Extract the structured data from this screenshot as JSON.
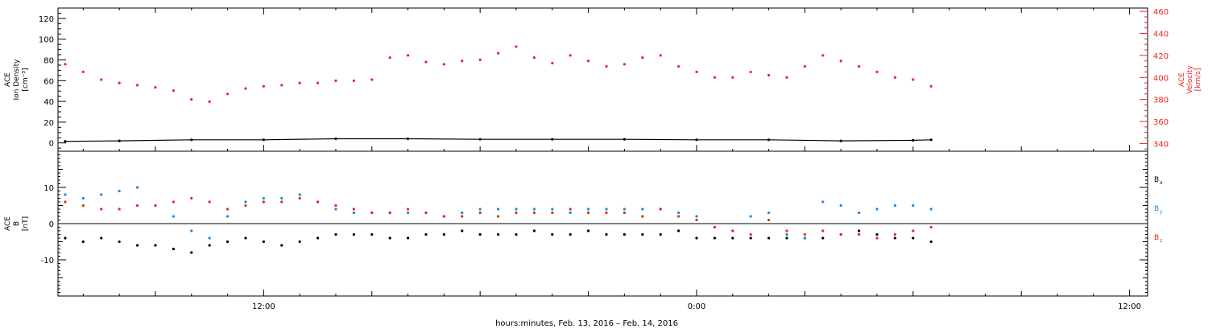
{
  "xlabel": "hours:minutes, Feb. 13, 2016 – Feb. 14, 2016",
  "colors": {
    "axis": "#000000",
    "density": "#000000",
    "velocity": "#ee2222",
    "bx": "#000000",
    "by": "#1f86dd",
    "bz": "#ee2222"
  },
  "chart_data": [
    {
      "type": "scatter",
      "x_axis": {
        "unit": "hours since Feb 13 00:00",
        "range": [
          6.3,
          36.5
        ],
        "tick_labels": [
          {
            "at": 12,
            "label": "12:00"
          },
          {
            "at": 24,
            "label": "0:00"
          },
          {
            "at": 36,
            "label": "12:00"
          }
        ]
      },
      "left_axis": {
        "label_lines": [
          "ACE",
          "Ion Density",
          "[cm⁻³]"
        ],
        "range": [
          -8,
          130
        ],
        "ticks": [
          0,
          20,
          40,
          60,
          80,
          100,
          120
        ]
      },
      "right_axis": {
        "label_lines": [
          "ACE",
          "Velocity",
          "[km/s]"
        ],
        "range": [
          333,
          463
        ],
        "ticks": [
          340,
          360,
          380,
          400,
          420,
          440,
          460
        ]
      },
      "series": [
        {
          "axis": "left",
          "color_key": "density",
          "x": [
            6.5,
            8,
            10,
            12,
            14,
            16,
            18,
            20,
            22,
            24,
            26,
            28,
            30,
            30.5
          ],
          "y": [
            1.5,
            2,
            3,
            3,
            4,
            4,
            3.5,
            3.5,
            3.5,
            3,
            3,
            2,
            2.5,
            3
          ]
        },
        {
          "axis": "right",
          "color_key": "velocity",
          "x": [
            6.5,
            7.0,
            7.5,
            8.0,
            8.5,
            9.0,
            9.5,
            10.0,
            10.5,
            11.0,
            11.5,
            12.0,
            12.5,
            13.0,
            13.5,
            14.0,
            14.5,
            15.0,
            15.5,
            16.0,
            16.5,
            17.0,
            17.5,
            18.0,
            18.5,
            19.0,
            19.5,
            20.0,
            20.5,
            21.0,
            21.5,
            22.0,
            22.5,
            23.0,
            23.5,
            24.0,
            24.5,
            25.0,
            25.5,
            26.0,
            26.5,
            27.0,
            27.5,
            28.0,
            28.5,
            29.0,
            29.5,
            30.0,
            30.5
          ],
          "y": [
            412,
            405,
            398,
            395,
            393,
            391,
            388,
            380,
            378,
            385,
            390,
            392,
            393,
            395,
            395,
            397,
            397,
            398,
            418,
            420,
            414,
            412,
            415,
            416,
            422,
            428,
            418,
            413,
            420,
            415,
            410,
            412,
            418,
            420,
            410,
            405,
            400,
            400,
            405,
            402,
            400,
            410,
            420,
            415,
            410,
            405,
            400,
            398,
            392
          ]
        }
      ]
    },
    {
      "type": "scatter",
      "x_axis": {
        "unit": "hours since Feb 13 00:00",
        "range": [
          6.3,
          36.5
        ]
      },
      "left_axis": {
        "label_lines": [
          "ACE",
          "B",
          "[nT]"
        ],
        "range": [
          -20,
          20
        ],
        "ticks": [
          -10,
          0,
          10
        ]
      },
      "zero_line": true,
      "legend": {
        "position": "right",
        "entries": [
          {
            "label": "B",
            "sub": "x",
            "color_key": "bx"
          },
          {
            "label": "B",
            "sub": "y",
            "color_key": "by"
          },
          {
            "label": "B",
            "sub": "z",
            "color_key": "bz"
          }
        ]
      },
      "series": [
        {
          "color_key": "bx",
          "x": [
            6.5,
            7.0,
            7.5,
            8.0,
            8.5,
            9.0,
            9.5,
            10.0,
            10.5,
            11.0,
            11.5,
            12.0,
            12.5,
            13.0,
            13.5,
            14.0,
            14.5,
            15.0,
            15.5,
            16.0,
            16.5,
            17.0,
            17.5,
            18.0,
            18.5,
            19.0,
            19.5,
            20.0,
            20.5,
            21.0,
            21.5,
            22.0,
            22.5,
            23.0,
            23.5,
            24.0,
            24.5,
            25.0,
            25.5,
            26.0,
            26.5,
            27.0,
            27.5,
            28.0,
            28.5,
            29.0,
            29.5,
            30.0,
            30.5
          ],
          "y": [
            -4,
            -5,
            -4,
            -5,
            -6,
            -6,
            -7,
            -8,
            -6,
            -5,
            -4,
            -5,
            -6,
            -5,
            -4,
            -3,
            -3,
            -3,
            -4,
            -4,
            -3,
            -3,
            -2,
            -3,
            -3,
            -3,
            -2,
            -3,
            -3,
            -2,
            -3,
            -3,
            -3,
            -3,
            -2,
            -4,
            -4,
            -4,
            -4,
            -4,
            -4,
            -4,
            -4,
            -3,
            -2,
            -3,
            -4,
            -4,
            -5
          ]
        },
        {
          "color_key": "by",
          "x": [
            6.5,
            7.0,
            7.5,
            8.0,
            8.5,
            9.0,
            9.5,
            10.0,
            10.5,
            11.0,
            11.5,
            12.0,
            12.5,
            13.0,
            13.5,
            14.0,
            14.5,
            15.0,
            15.5,
            16.0,
            16.5,
            17.0,
            17.5,
            18.0,
            18.5,
            19.0,
            19.5,
            20.0,
            20.5,
            21.0,
            21.5,
            22.0,
            22.5,
            23.0,
            23.5,
            24.0,
            24.5,
            25.0,
            25.5,
            26.0,
            26.5,
            27.0,
            27.5,
            28.0,
            28.5,
            29.0,
            29.5,
            30.0,
            30.5
          ],
          "y": [
            8,
            7,
            8,
            9,
            10,
            5,
            2,
            -2,
            -4,
            2,
            6,
            7,
            7,
            8,
            6,
            4,
            3,
            3,
            3,
            3,
            3,
            2,
            3,
            4,
            4,
            4,
            4,
            4,
            3,
            4,
            4,
            4,
            4,
            4,
            3,
            2,
            -1,
            -2,
            2,
            3,
            -3,
            -4,
            6,
            5,
            3,
            4,
            5,
            5,
            4
          ]
        },
        {
          "color_key": "bz",
          "x": [
            6.5,
            7.0,
            7.5,
            8.0,
            8.5,
            9.0,
            9.5,
            10.0,
            10.5,
            11.0,
            11.5,
            12.0,
            12.5,
            13.0,
            13.5,
            14.0,
            14.5,
            15.0,
            15.5,
            16.0,
            16.5,
            17.0,
            17.5,
            18.0,
            18.5,
            19.0,
            19.5,
            20.0,
            20.5,
            21.0,
            21.5,
            22.0,
            22.5,
            23.0,
            23.5,
            24.0,
            24.5,
            25.0,
            25.5,
            26.0,
            26.5,
            27.0,
            27.5,
            28.0,
            28.5,
            29.0,
            29.5,
            30.0,
            30.5
          ],
          "y": [
            6,
            5,
            4,
            4,
            5,
            5,
            6,
            7,
            6,
            4,
            5,
            6,
            6,
            7,
            6,
            5,
            4,
            3,
            3,
            4,
            3,
            2,
            2,
            3,
            2,
            3,
            3,
            3,
            4,
            3,
            3,
            3,
            2,
            4,
            2,
            1,
            -1,
            -2,
            -3,
            1,
            -2,
            -3,
            -2,
            -3,
            -3,
            -4,
            -3,
            -2,
            -1
          ]
        }
      ]
    }
  ]
}
